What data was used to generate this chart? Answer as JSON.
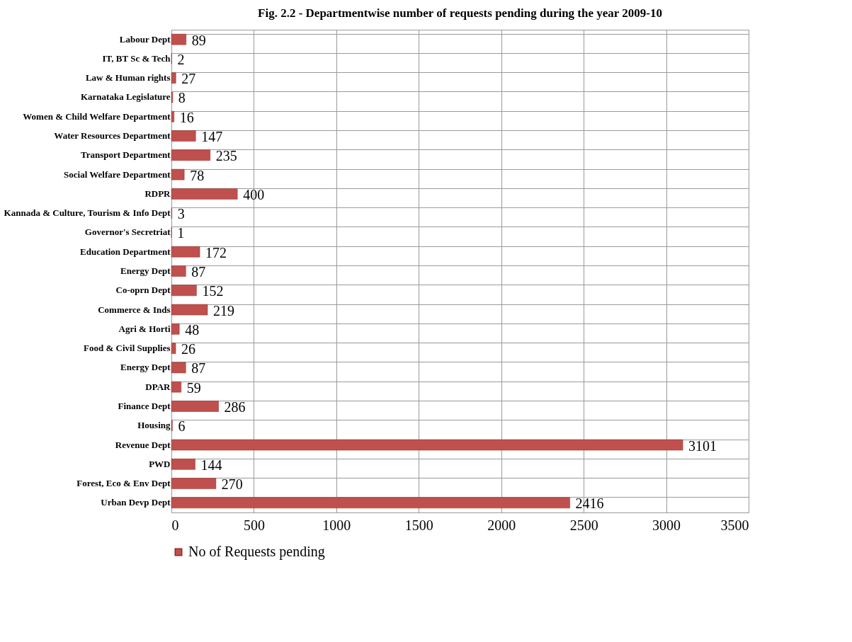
{
  "chart_data": {
    "type": "bar",
    "orientation": "horizontal",
    "title": "Fig. 2.2 - Departmentwise number of requests pending during the year 2009-10",
    "categories": [
      "Labour Dept",
      "IT, BT Sc & Tech",
      "Law & Human rights",
      "Karnataka Legislature",
      "Women & Child Welfare Department",
      "Water Resources Department",
      "Transport Department",
      "Social Welfare Department",
      "RDPR",
      "Kannada & Culture, Tourism & Info Dept",
      "Governor's Secretriat",
      "Education Department",
      "Energy Dept",
      "Co-oprn Dept",
      "Commerce & Inds",
      "Agri &  Horti",
      "Food & Civil Supplies",
      "Energy Dept",
      "DPAR",
      "Finance Dept",
      "Housing",
      "Revenue Dept",
      "PWD",
      "Forest, Eco & Env Dept",
      "Urban Devp Dept"
    ],
    "series": [
      {
        "name": "No of Requests pending",
        "color": "#c0504d",
        "values": [
          89,
          2,
          27,
          8,
          16,
          147,
          235,
          78,
          400,
          3,
          1,
          172,
          87,
          152,
          219,
          48,
          26,
          87,
          59,
          286,
          6,
          3101,
          144,
          270,
          2416
        ]
      }
    ],
    "xlim": [
      0,
      3500
    ],
    "xticks": [
      0,
      500,
      1000,
      1500,
      2000,
      2500,
      3000,
      3500
    ],
    "grid": true,
    "legend": "bottom",
    "data_labels": true
  }
}
